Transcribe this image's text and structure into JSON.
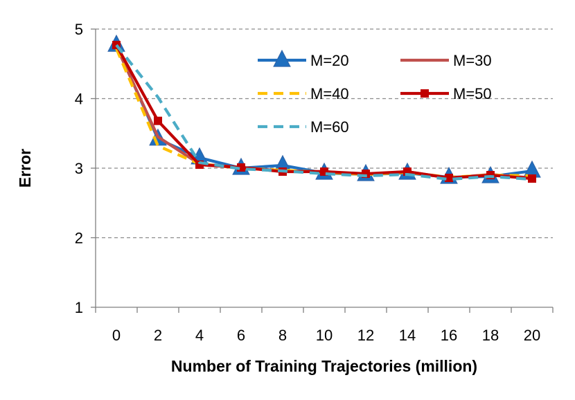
{
  "chart_data": {
    "type": "line",
    "title": "",
    "xlabel": "Number of Training Trajectories (million)",
    "ylabel": "Error",
    "xlim": [
      0,
      20
    ],
    "ylim": [
      1,
      5
    ],
    "x": [
      0,
      2,
      4,
      6,
      8,
      10,
      12,
      14,
      16,
      18,
      20
    ],
    "x_tick_labels": [
      "0",
      "2",
      "4",
      "6",
      "8",
      "10",
      "12",
      "14",
      "16",
      "18",
      "20"
    ],
    "y_ticks": [
      1,
      2,
      3,
      4,
      5
    ],
    "y_tick_labels": [
      "1",
      "2",
      "3",
      "4",
      "5"
    ],
    "grid": "horizontal dashed",
    "legend_position": "top-right",
    "series": [
      {
        "name": "M=20",
        "color": "#1f6fbf",
        "style": "solid-triangle",
        "values": [
          4.77,
          3.42,
          3.15,
          3.0,
          3.04,
          2.93,
          2.91,
          2.93,
          2.87,
          2.88,
          2.96
        ]
      },
      {
        "name": "M=30",
        "color": "#c0504d",
        "style": "solid",
        "values": [
          4.75,
          3.45,
          3.06,
          3.01,
          2.96,
          2.95,
          2.91,
          2.95,
          2.86,
          2.91,
          2.86
        ]
      },
      {
        "name": "M=40",
        "color": "#ffc000",
        "style": "dashed",
        "values": [
          4.72,
          3.32,
          3.06,
          3.0,
          2.97,
          2.94,
          2.91,
          2.94,
          2.87,
          2.9,
          2.89
        ]
      },
      {
        "name": "M=50",
        "color": "#c00000",
        "style": "solid-square",
        "values": [
          4.77,
          3.68,
          3.05,
          3.01,
          2.95,
          2.95,
          2.92,
          2.95,
          2.86,
          2.9,
          2.85
        ]
      },
      {
        "name": "M=60",
        "color": "#4bacc6",
        "style": "dashed",
        "values": [
          4.77,
          4.02,
          3.08,
          2.99,
          2.96,
          2.92,
          2.89,
          2.91,
          2.84,
          2.88,
          2.84
        ]
      }
    ]
  }
}
